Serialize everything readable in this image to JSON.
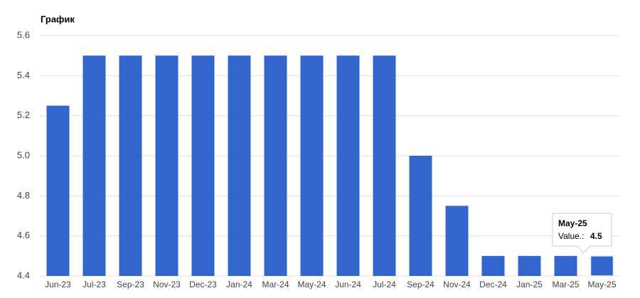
{
  "chart_data": {
    "type": "bar",
    "title": "График",
    "categories": [
      "Jun-23",
      "Jul-23",
      "Sep-23",
      "Nov-23",
      "Dec-23",
      "Jan-24",
      "Mar-24",
      "May-24",
      "Jun-24",
      "Jul-24",
      "Sep-24",
      "Nov-24",
      "Dec-24",
      "Jan-25",
      "Mar-25",
      "May-25"
    ],
    "values": [
      5.25,
      5.5,
      5.5,
      5.5,
      5.5,
      5.5,
      5.5,
      5.5,
      5.5,
      5.5,
      5.0,
      4.75,
      4.5,
      4.5,
      4.5,
      4.5
    ],
    "color": "#3366cc",
    "ylim": [
      4.4,
      5.6
    ],
    "yticks": [
      4.4,
      4.6,
      4.8,
      {
        "value": 5,
        "label": "5.0"
      },
      5.2,
      5.4,
      5.6
    ],
    "grid": true,
    "tooltip": {
      "label": "Value.:"
    }
  }
}
